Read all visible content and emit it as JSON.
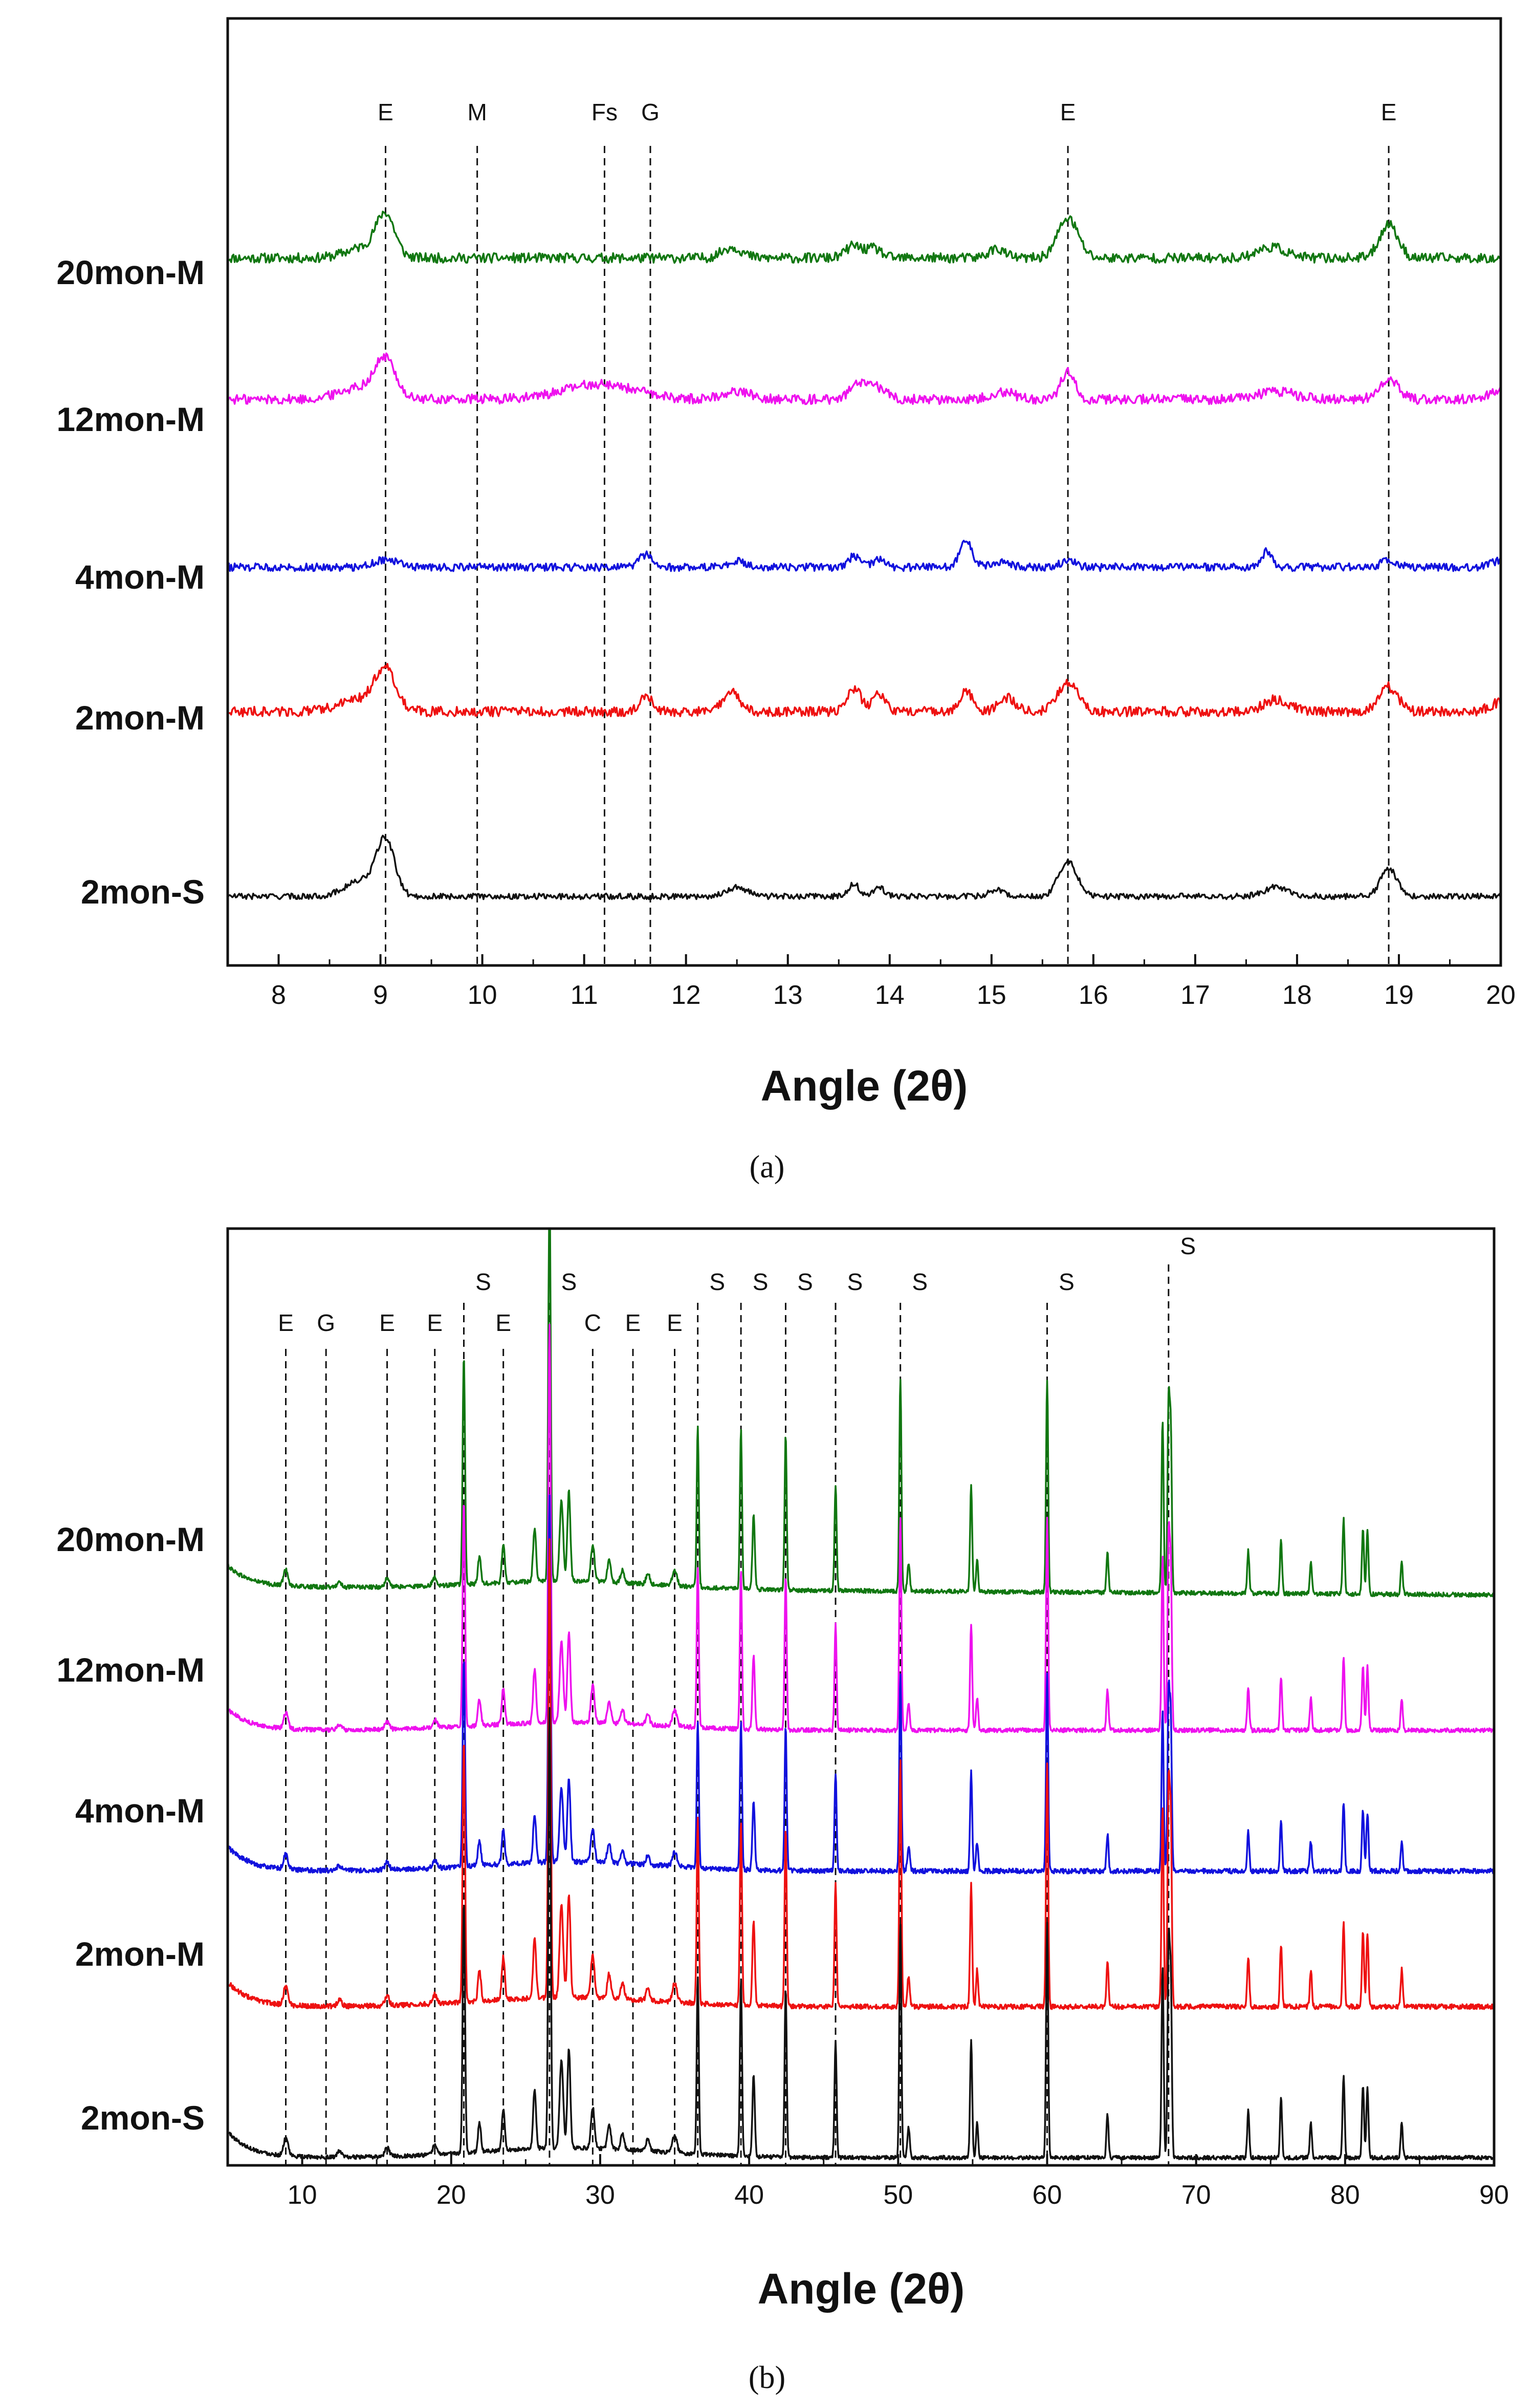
{
  "chart_data": [
    {
      "type": "line",
      "caption": "(a)",
      "xlabel": "Angle (2θ)",
      "ylabel": "",
      "xlim": [
        7.5,
        20
      ],
      "xticks": [
        "8",
        "9",
        "10",
        "11",
        "12",
        "13",
        "14",
        "15",
        "16",
        "17",
        "18",
        "19",
        "20"
      ],
      "series_order": [
        "20mon-M",
        "12mon-M",
        "4mon-M",
        "2mon-M",
        "2mon-S"
      ],
      "series": [
        {
          "name": "20mon-M",
          "color": "#117711",
          "baseline": 0.12,
          "noise": 0.01,
          "peaks": [
            [
              9.05,
              0.26,
              0.09
            ],
            [
              8.85,
              0.07,
              0.18
            ],
            [
              12.45,
              0.07,
              0.1
            ],
            [
              13.65,
              0.08,
              0.08
            ],
            [
              13.85,
              0.06,
              0.07
            ],
            [
              15.05,
              0.06,
              0.08
            ],
            [
              15.75,
              0.26,
              0.1
            ],
            [
              17.75,
              0.07,
              0.14
            ],
            [
              18.9,
              0.22,
              0.09
            ]
          ]
        },
        {
          "name": "12mon-M",
          "color": "#ee11ee",
          "baseline": 0.1,
          "noise": 0.01,
          "peaks": [
            [
              9.05,
              0.24,
              0.1
            ],
            [
              8.8,
              0.08,
              0.2
            ],
            [
              11.15,
              0.1,
              0.35
            ],
            [
              12.5,
              0.05,
              0.15
            ],
            [
              13.7,
              0.1,
              0.09
            ],
            [
              13.9,
              0.07,
              0.08
            ],
            [
              15.1,
              0.05,
              0.12
            ],
            [
              15.75,
              0.18,
              0.07
            ],
            [
              17.8,
              0.05,
              0.18
            ],
            [
              18.9,
              0.14,
              0.09
            ],
            [
              20.0,
              0.06,
              0.1
            ]
          ]
        },
        {
          "name": "4mon-M",
          "color": "#1111dd",
          "baseline": 0.09,
          "noise": 0.008,
          "peaks": [
            [
              9.05,
              0.05,
              0.12
            ],
            [
              11.6,
              0.08,
              0.06
            ],
            [
              12.5,
              0.04,
              0.08
            ],
            [
              13.65,
              0.07,
              0.06
            ],
            [
              13.9,
              0.05,
              0.06
            ],
            [
              14.75,
              0.17,
              0.06
            ],
            [
              15.1,
              0.04,
              0.08
            ],
            [
              15.75,
              0.04,
              0.08
            ],
            [
              17.7,
              0.1,
              0.05
            ],
            [
              18.9,
              0.04,
              0.08
            ],
            [
              20.0,
              0.04,
              0.1
            ]
          ]
        },
        {
          "name": "2mon-M",
          "color": "#ee1111",
          "baseline": 0.1,
          "noise": 0.01,
          "peaks": [
            [
              9.05,
              0.26,
              0.1
            ],
            [
              8.8,
              0.08,
              0.2
            ],
            [
              11.6,
              0.11,
              0.06
            ],
            [
              12.45,
              0.13,
              0.08
            ],
            [
              13.65,
              0.15,
              0.07
            ],
            [
              13.9,
              0.12,
              0.06
            ],
            [
              14.75,
              0.13,
              0.07
            ],
            [
              15.15,
              0.09,
              0.08
            ],
            [
              15.75,
              0.19,
              0.1
            ],
            [
              17.8,
              0.08,
              0.12
            ],
            [
              18.9,
              0.16,
              0.09
            ],
            [
              20.0,
              0.06,
              0.1
            ]
          ]
        },
        {
          "name": "2mon-S",
          "color": "#111111",
          "baseline": 0.08,
          "noise": 0.006,
          "peaks": [
            [
              9.05,
              0.36,
              0.09
            ],
            [
              8.8,
              0.1,
              0.15
            ],
            [
              12.5,
              0.06,
              0.1
            ],
            [
              13.65,
              0.08,
              0.05
            ],
            [
              13.9,
              0.06,
              0.05
            ],
            [
              15.05,
              0.04,
              0.08
            ],
            [
              15.75,
              0.23,
              0.09
            ],
            [
              17.8,
              0.06,
              0.12
            ],
            [
              18.9,
              0.18,
              0.08
            ]
          ]
        }
      ],
      "reference_lines": [
        {
          "label": "E",
          "x": 9.05
        },
        {
          "label": "M",
          "x": 9.95
        },
        {
          "label": "Fs",
          "x": 11.2
        },
        {
          "label": "G",
          "x": 11.65
        },
        {
          "label": "E",
          "x": 15.75
        },
        {
          "label": "E",
          "x": 18.9
        }
      ]
    },
    {
      "type": "line",
      "caption": "(b)",
      "xlabel": "Angle (2θ)",
      "ylabel": "",
      "xlim": [
        5,
        90
      ],
      "xticks": [
        "10",
        "20",
        "30",
        "40",
        "50",
        "60",
        "70",
        "80",
        "90"
      ],
      "series_order": [
        "20mon-M",
        "12mon-M",
        "4mon-M",
        "2mon-M",
        "2mon-S"
      ],
      "series": [
        {
          "name": "20mon-M",
          "color": "#117711",
          "scale": 1.0,
          "noise": 0.004
        },
        {
          "name": "12mon-M",
          "color": "#ee11ee",
          "scale": 1.0,
          "noise": 0.004
        },
        {
          "name": "4mon-M",
          "color": "#1111dd",
          "scale": 0.8,
          "noise": 0.004
        },
        {
          "name": "2mon-M",
          "color": "#ee1111",
          "scale": 1.0,
          "noise": 0.004
        },
        {
          "name": "2mon-S",
          "color": "#111111",
          "scale": 0.9,
          "noise": 0.003
        }
      ],
      "common_peaks": [
        [
          8.9,
          0.06,
          0.15
        ],
        [
          12.5,
          0.02,
          0.15
        ],
        [
          15.7,
          0.03,
          0.15
        ],
        [
          18.9,
          0.03,
          0.15
        ],
        [
          20.85,
          0.85,
          0.08
        ],
        [
          21.9,
          0.1,
          0.1
        ],
        [
          23.5,
          0.14,
          0.1
        ],
        [
          25.6,
          0.2,
          0.1
        ],
        [
          26.6,
          1.5,
          0.08
        ],
        [
          27.4,
          0.3,
          0.12
        ],
        [
          27.9,
          0.34,
          0.1
        ],
        [
          29.5,
          0.14,
          0.12
        ],
        [
          30.6,
          0.08,
          0.12
        ],
        [
          31.5,
          0.05,
          0.12
        ],
        [
          33.2,
          0.04,
          0.12
        ],
        [
          35.0,
          0.06,
          0.15
        ],
        [
          36.55,
          0.6,
          0.07
        ],
        [
          39.45,
          0.6,
          0.07
        ],
        [
          40.3,
          0.28,
          0.08
        ],
        [
          42.45,
          0.58,
          0.07
        ],
        [
          45.8,
          0.4,
          0.07
        ],
        [
          50.15,
          0.8,
          0.07
        ],
        [
          50.7,
          0.1,
          0.08
        ],
        [
          54.9,
          0.4,
          0.07
        ],
        [
          55.3,
          0.12,
          0.07
        ],
        [
          60.0,
          0.8,
          0.07
        ],
        [
          64.05,
          0.15,
          0.07
        ],
        [
          67.75,
          0.65,
          0.07
        ],
        [
          68.15,
          0.7,
          0.07
        ],
        [
          68.3,
          0.6,
          0.07
        ],
        [
          73.5,
          0.16,
          0.07
        ],
        [
          75.7,
          0.2,
          0.07
        ],
        [
          77.7,
          0.12,
          0.07
        ],
        [
          79.9,
          0.28,
          0.07
        ],
        [
          81.2,
          0.25,
          0.07
        ],
        [
          81.5,
          0.24,
          0.07
        ],
        [
          83.8,
          0.12,
          0.07
        ]
      ],
      "reference_lines": [
        {
          "label": "E",
          "x": 8.9
        },
        {
          "label": "G",
          "x": 11.6
        },
        {
          "label": "E",
          "x": 15.7
        },
        {
          "label": "E",
          "x": 18.9
        },
        {
          "label": "S",
          "x": 20.85
        },
        {
          "label": "E",
          "x": 23.5
        },
        {
          "label": "S",
          "x": 26.6
        },
        {
          "label": "C",
          "x": 29.5
        },
        {
          "label": "E",
          "x": 32.2
        },
        {
          "label": "E",
          "x": 35.0
        },
        {
          "label": "S",
          "x": 36.55
        },
        {
          "label": "S",
          "x": 39.45
        },
        {
          "label": "S",
          "x": 42.45
        },
        {
          "label": "S",
          "x": 45.8
        },
        {
          "label": "S",
          "x": 50.15
        },
        {
          "label": "S",
          "x": 60.0
        },
        {
          "label": "S",
          "x": 68.15
        }
      ]
    }
  ]
}
